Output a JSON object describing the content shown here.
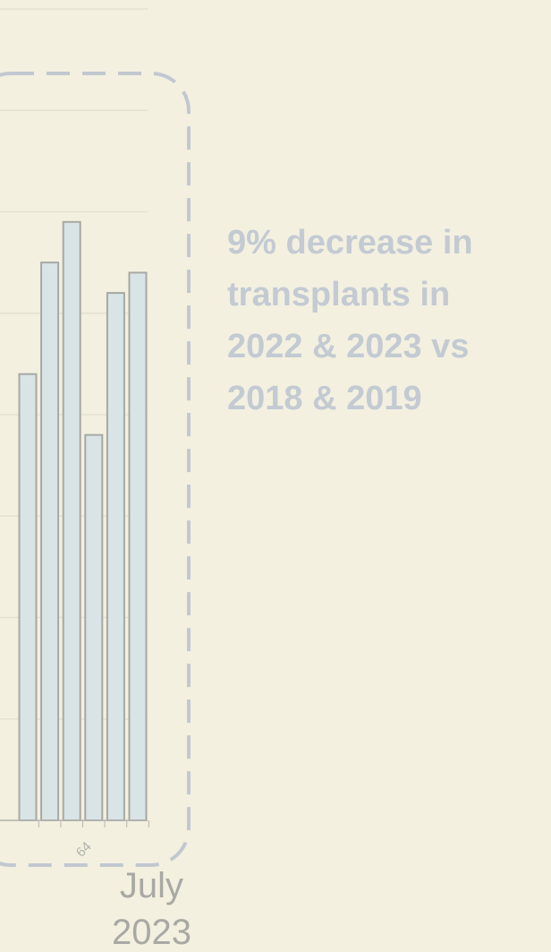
{
  "chart_data": {
    "type": "bar",
    "categories": [
      null,
      null,
      null,
      "64",
      null,
      null
    ],
    "values": [
      4.4,
      5.5,
      5.9,
      3.8,
      5.2,
      5.4
    ],
    "color": "#d9e4e7",
    "ylim": [
      0,
      8
    ],
    "yticks": [
      0,
      1,
      2,
      3,
      4,
      5,
      6,
      7,
      8
    ],
    "grid": true,
    "annotation": [
      "9% decrease in",
      "transplants in",
      "2022 & 2023 vs",
      "2018 & 2019"
    ],
    "period": [
      "July",
      "2023"
    ]
  }
}
